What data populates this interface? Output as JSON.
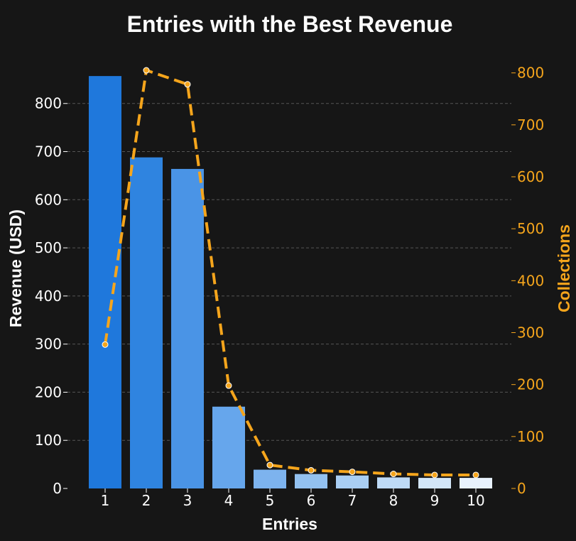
{
  "chart_data": {
    "type": "bar",
    "title": "Entries with the Best Revenue",
    "xlabel": "Entries",
    "ylabel": "Revenue (USD)",
    "y2label": "Collections",
    "categories": [
      "1",
      "2",
      "3",
      "4",
      "5",
      "6",
      "7",
      "8",
      "9",
      "10"
    ],
    "series": [
      {
        "type": "bar",
        "axis": "left",
        "values": [
          857,
          688,
          664,
          170,
          39,
          30,
          27,
          23,
          22,
          22
        ]
      },
      {
        "type": "line",
        "axis": "right",
        "style": "dashed",
        "values": [
          277,
          805,
          778,
          198,
          45,
          35,
          32,
          28,
          26,
          26
        ]
      }
    ],
    "y_ticks": [
      0,
      100,
      200,
      300,
      400,
      500,
      600,
      700,
      800
    ],
    "y2_ticks": [
      0,
      100,
      200,
      300,
      400,
      500,
      600,
      700,
      800
    ],
    "ylim": [
      0,
      897
    ],
    "y2lim": [
      0,
      831
    ],
    "grid": "horizontal dashed",
    "colors": {
      "background": "#161616",
      "bar_gradient": [
        "#1f78dc",
        "#2f84e0",
        "#4a94e6",
        "#66a6ec",
        "#7db3ee",
        "#93c1f0",
        "#a9cef3",
        "#bedaf6",
        "#d3e6f8",
        "#e8f2fd"
      ],
      "line": "#f5a51c",
      "text": "#ffffff",
      "right_axis": "#f5a51c",
      "grid": "#555555"
    }
  }
}
